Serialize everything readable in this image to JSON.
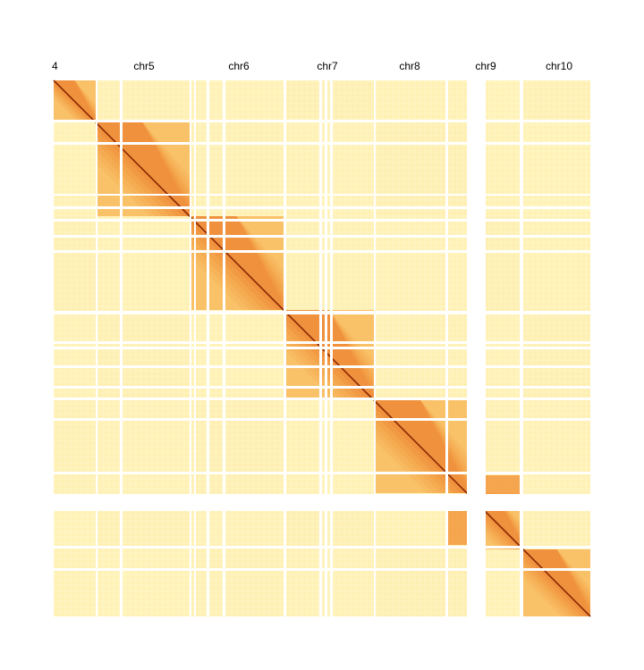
{
  "chart_data": {
    "type": "heatmap",
    "title": "",
    "xlabel": "",
    "ylabel": "",
    "chromosomes": [
      {
        "name": "chr4",
        "label": "4"
      },
      {
        "name": "chr5",
        "label": "chr5"
      },
      {
        "name": "chr6",
        "label": "chr6"
      },
      {
        "name": "chr7",
        "label": "chr7"
      },
      {
        "name": "chr8",
        "label": "chr8"
      },
      {
        "name": "chr9",
        "label": "chr9"
      },
      {
        "name": "chr10",
        "label": "chr10"
      }
    ],
    "colormap": {
      "low": "#fff5c0",
      "mid": "#f7b04a",
      "high": "#e8601c",
      "diagonal": "#8b2a08"
    },
    "grid": false,
    "legend": "none"
  }
}
